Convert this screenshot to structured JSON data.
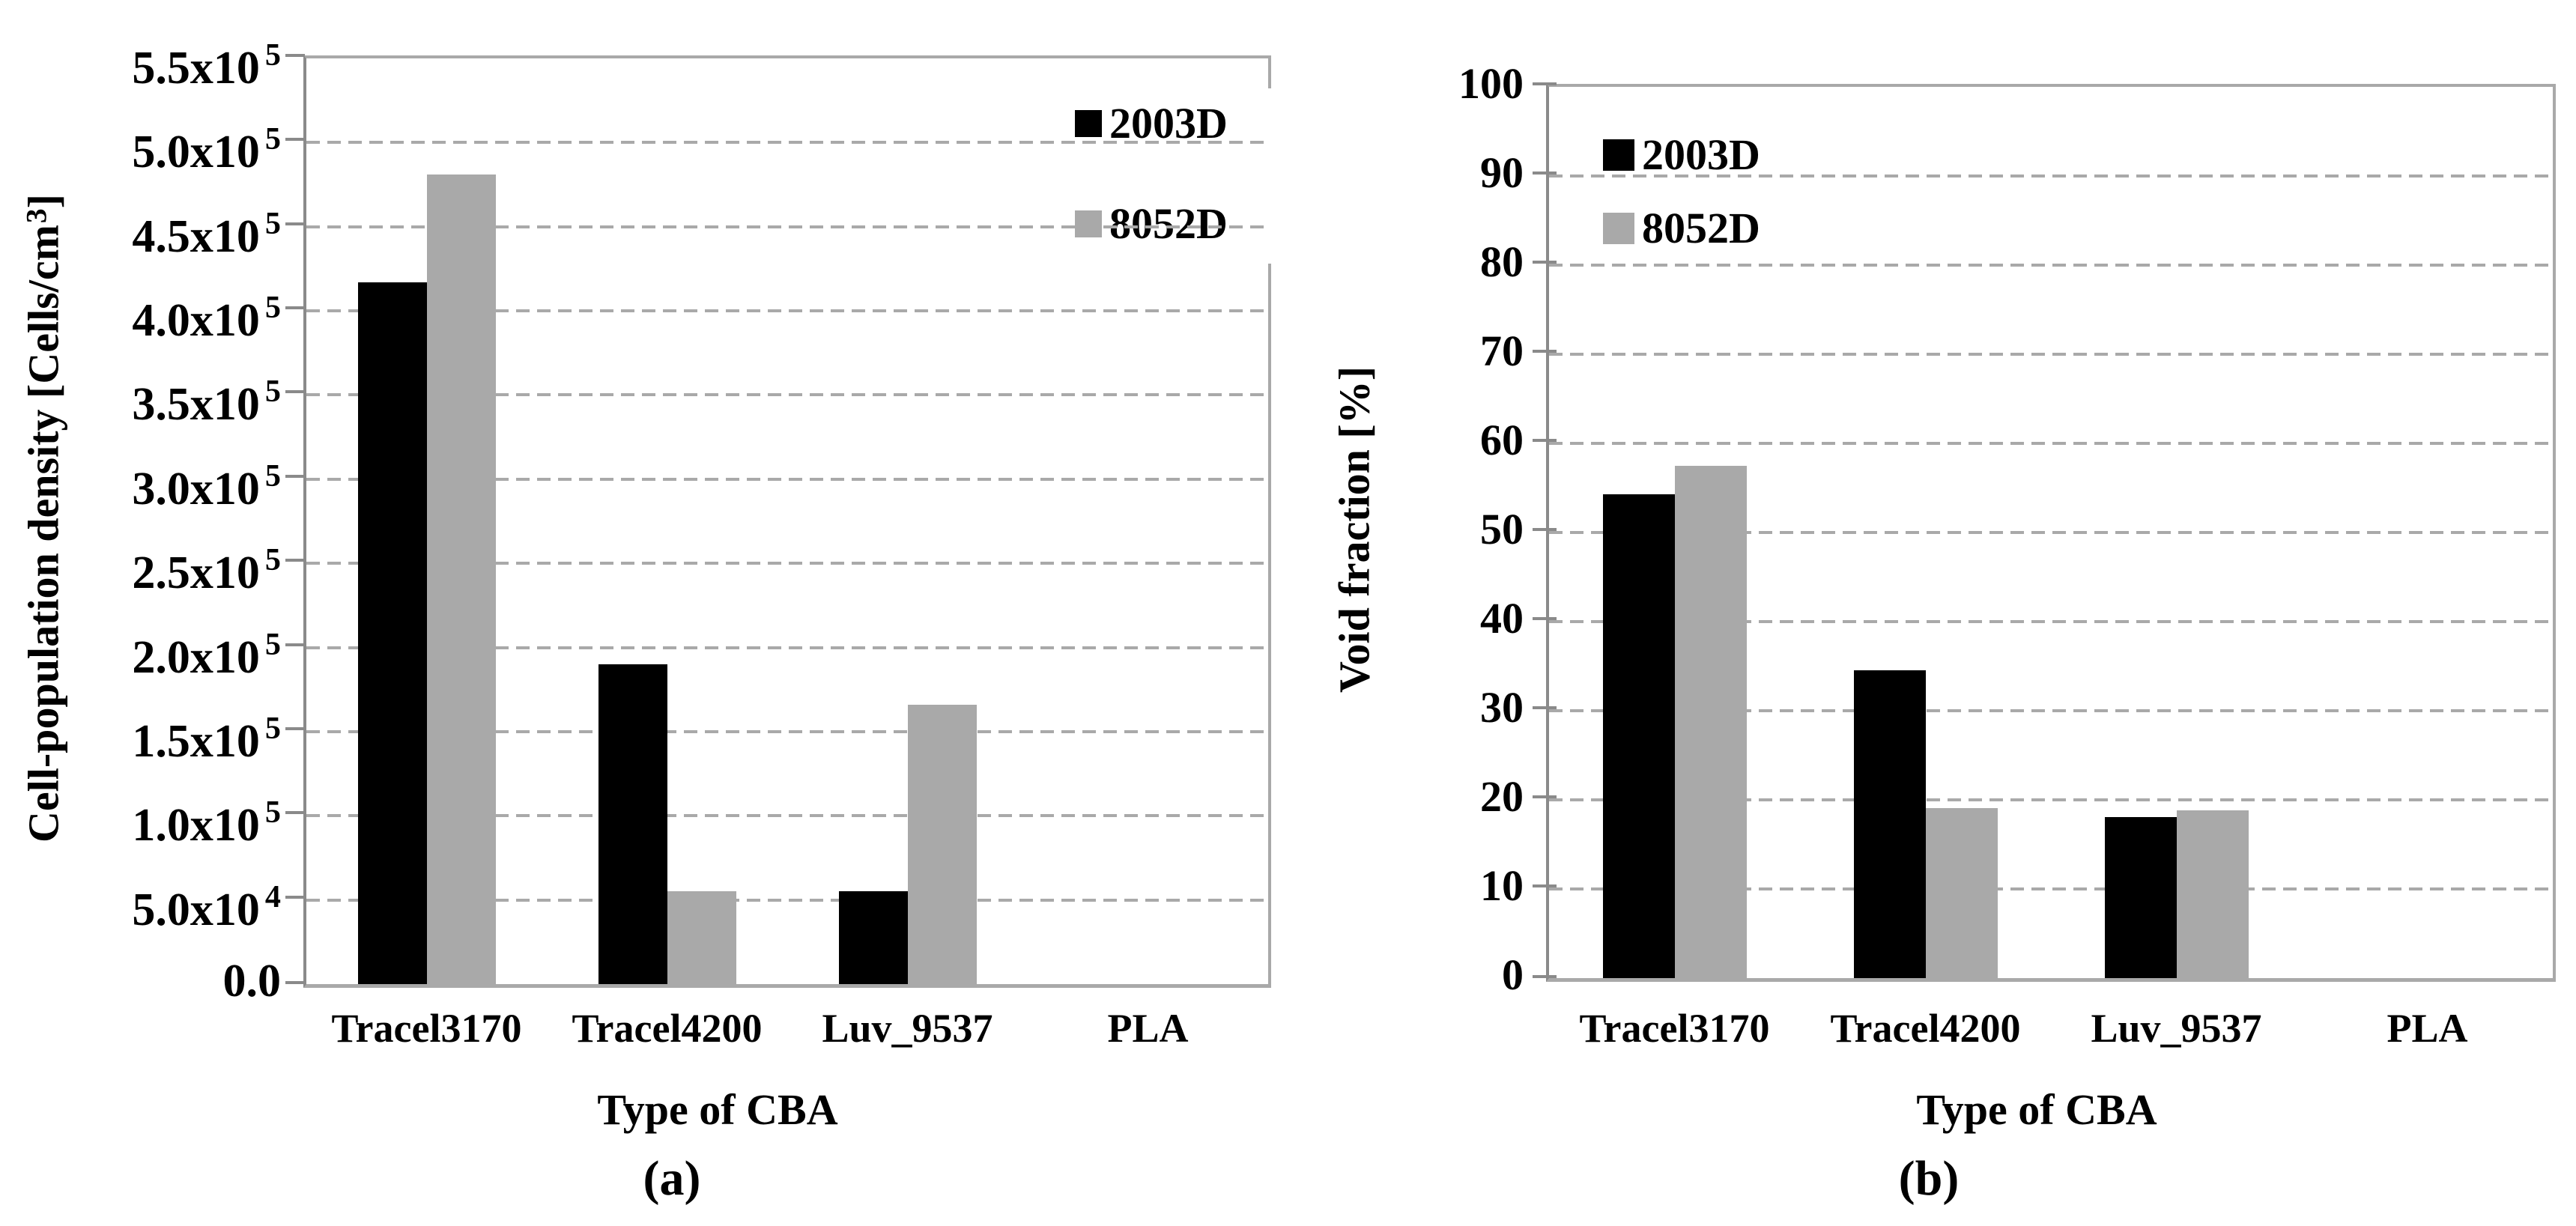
{
  "figure": {
    "background": "#ffffff",
    "colors": {
      "series_2003D": "#000000",
      "series_8052D": "#a9a9a9",
      "gridline": "#a9a9a9",
      "axis_line": "#8a8a8a",
      "frame": "#a9a9a9",
      "text": "#000000"
    }
  },
  "chart_data": [
    {
      "id": "a",
      "type": "bar",
      "caption": "(a)",
      "xlabel": "Type of CBA",
      "ylabel": "Cell-population density [Cells/cm^3]",
      "categories": [
        "Tracel3170",
        "Tracel4200",
        "Luv_9537",
        "PLA"
      ],
      "series": [
        {
          "name": "2003D",
          "color": "#000000",
          "values": [
            417000,
            190000,
            55000,
            0
          ]
        },
        {
          "name": "8052D",
          "color": "#a9a9a9",
          "values": [
            481000,
            55000,
            166000,
            0
          ]
        }
      ],
      "ylim": [
        0,
        550000
      ],
      "yticks": [
        {
          "v": 0,
          "label": "0.0"
        },
        {
          "v": 50000,
          "label": "5.0x10^4"
        },
        {
          "v": 100000,
          "label": "1.0x10^5"
        },
        {
          "v": 150000,
          "label": "1.5x10^5"
        },
        {
          "v": 200000,
          "label": "2.0x10^5"
        },
        {
          "v": 250000,
          "label": "2.5x10^5"
        },
        {
          "v": 300000,
          "label": "3.0x10^5"
        },
        {
          "v": 350000,
          "label": "3.5x10^5"
        },
        {
          "v": 400000,
          "label": "4.0x10^5"
        },
        {
          "v": 450000,
          "label": "4.5x10^5"
        },
        {
          "v": 500000,
          "label": "5.0x10^5"
        },
        {
          "v": 550000,
          "label": "5.5x10^5"
        }
      ],
      "grid": "dashed-horizontal",
      "legend_position": "top-right-inside"
    },
    {
      "id": "b",
      "type": "bar",
      "caption": "(b)",
      "xlabel": "Type of CBA",
      "ylabel": "Void fraction [%]",
      "categories": [
        "Tracel3170",
        "Tracel4200",
        "Luv_9537",
        "PLA"
      ],
      "series": [
        {
          "name": "2003D",
          "color": "#000000",
          "values": [
            54.3,
            34.5,
            18.1,
            0
          ]
        },
        {
          "name": "8052D",
          "color": "#a9a9a9",
          "values": [
            57.5,
            19.1,
            18.8,
            0
          ]
        }
      ],
      "ylim": [
        0,
        100
      ],
      "yticks": [
        {
          "v": 0,
          "label": "0"
        },
        {
          "v": 10,
          "label": "10"
        },
        {
          "v": 20,
          "label": "20"
        },
        {
          "v": 30,
          "label": "30"
        },
        {
          "v": 40,
          "label": "40"
        },
        {
          "v": 50,
          "label": "50"
        },
        {
          "v": 60,
          "label": "60"
        },
        {
          "v": 70,
          "label": "70"
        },
        {
          "v": 80,
          "label": "80"
        },
        {
          "v": 90,
          "label": "90"
        },
        {
          "v": 100,
          "label": "100"
        }
      ],
      "grid": "dashed-horizontal",
      "legend_position": "top-left-inside"
    }
  ]
}
